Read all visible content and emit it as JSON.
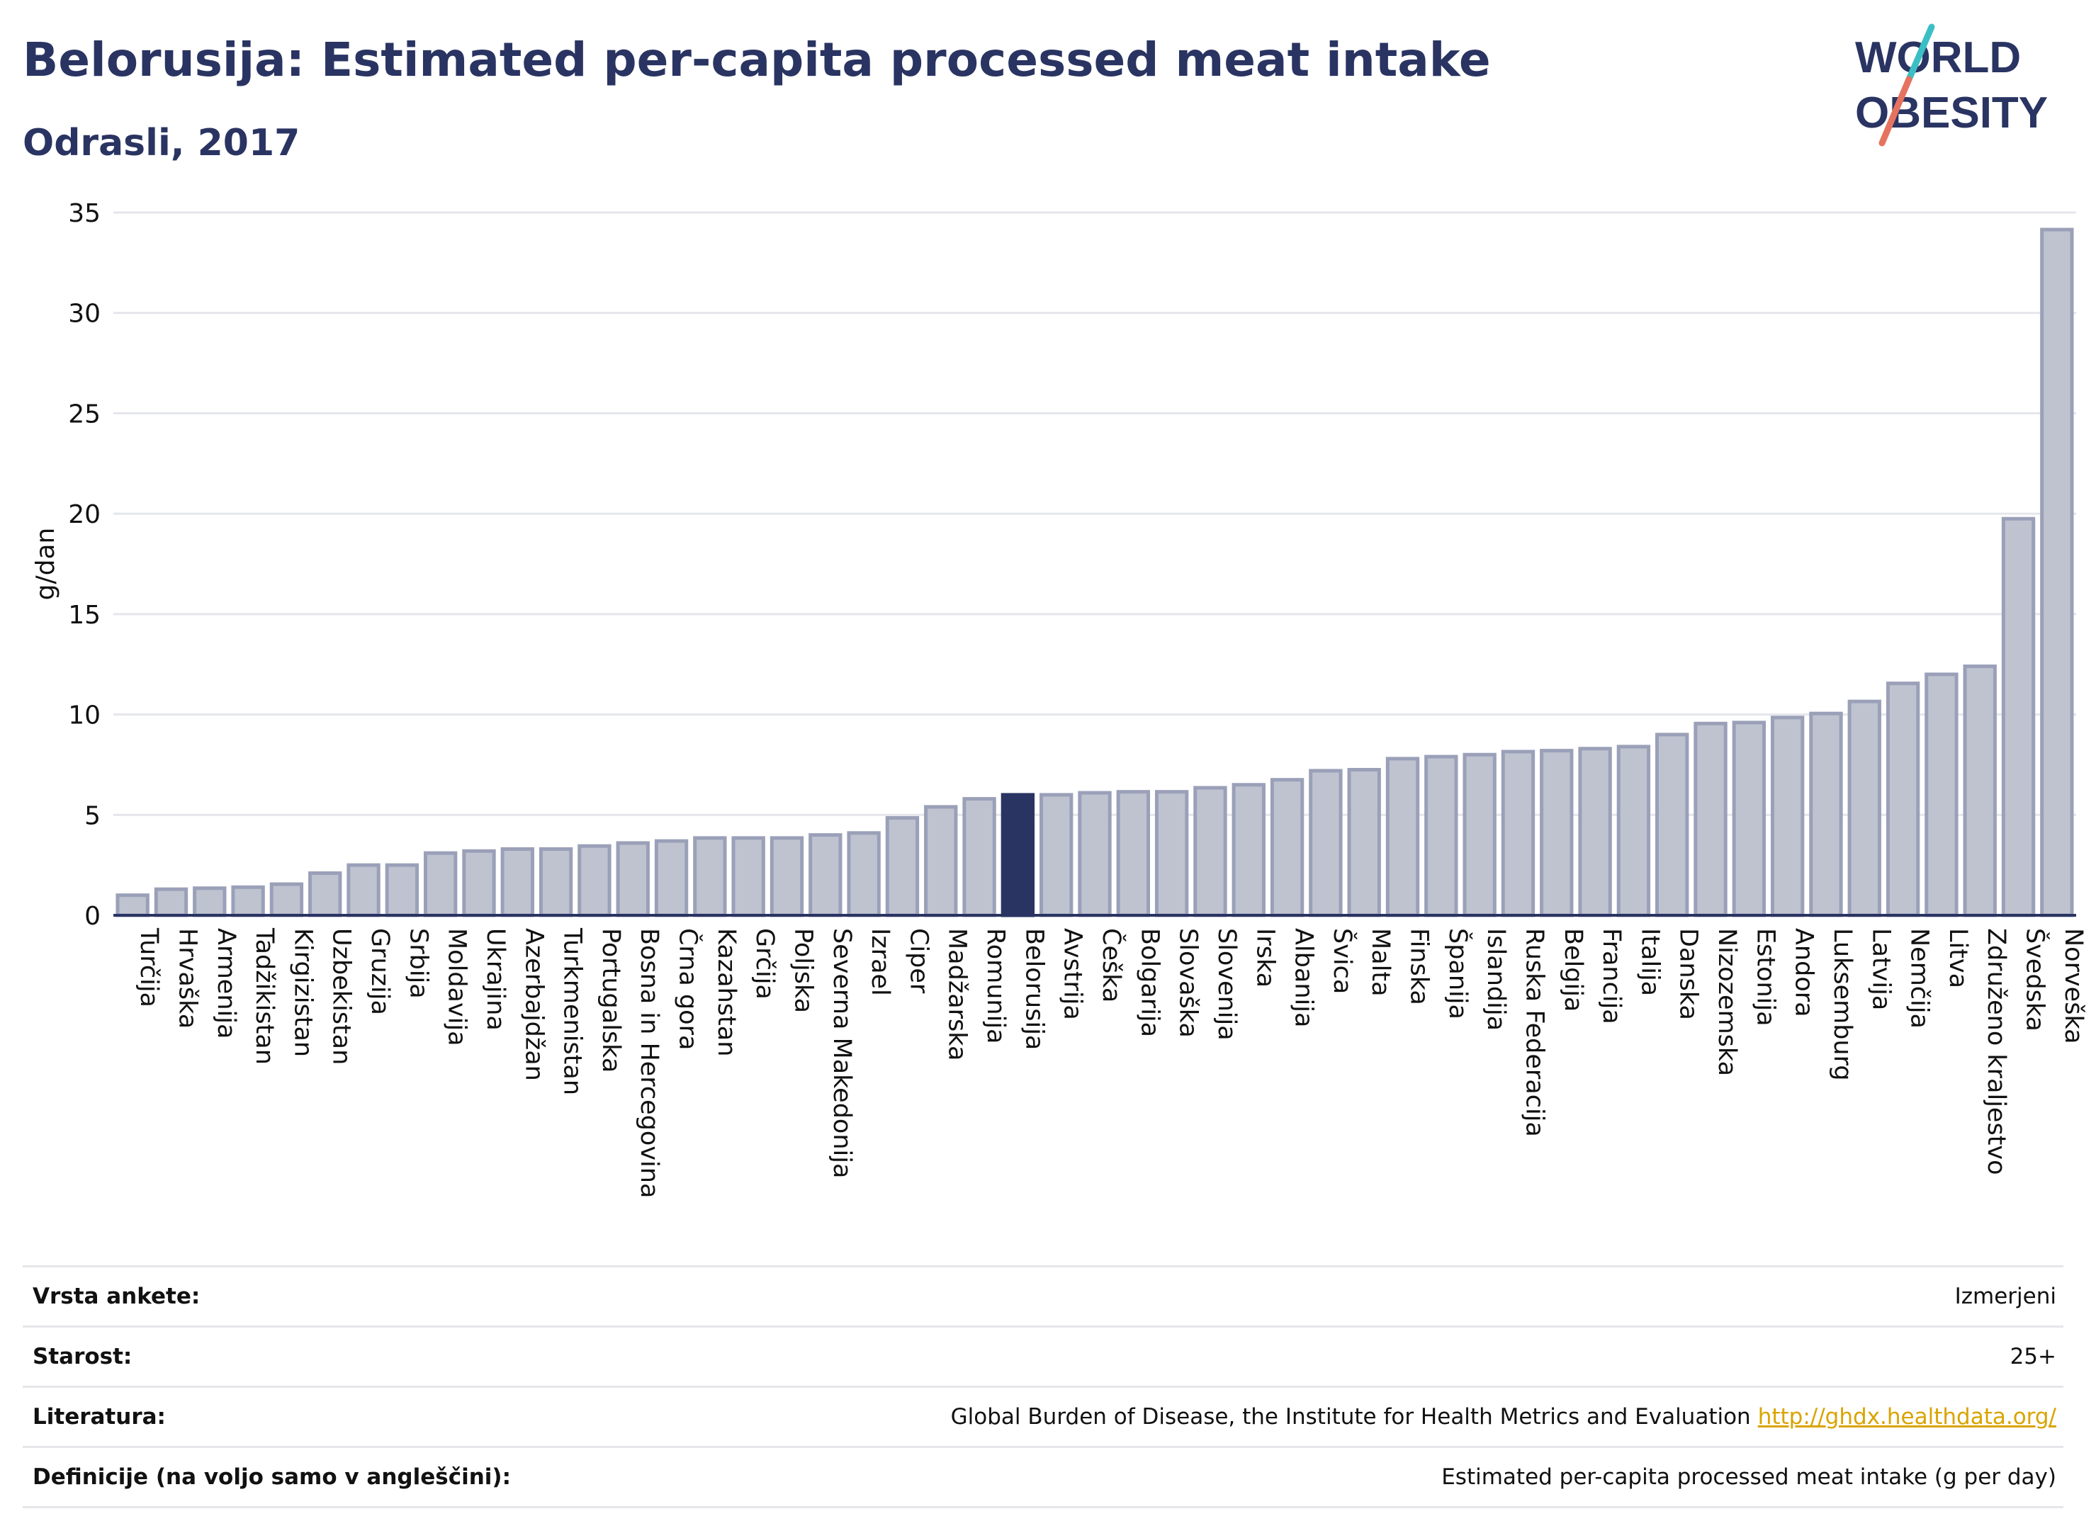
{
  "title": "Belorusija: Estimated per-capita processed meat intake",
  "subtitle": "Odrasli, 2017",
  "logo": {
    "line1": "WORLD",
    "line2": "OBESITY",
    "accent_teal": "#3bbfc4",
    "accent_red": "#e5735f",
    "text_color": "#2a3462"
  },
  "colors": {
    "bar_fill": "#bfc3d0",
    "bar_stroke": "#9aa0b8",
    "highlight_fill": "#2a3462",
    "grid": "#e4e6ec",
    "axis": "#2a3462"
  },
  "chart_data": {
    "type": "bar",
    "ylabel": "g/dan",
    "ylim": [
      0,
      35
    ],
    "yticks": [
      0,
      5,
      10,
      15,
      20,
      25,
      30,
      35
    ],
    "grid": true,
    "highlight": "Belorusija",
    "categories": [
      "Turčija",
      "Hrvaška",
      "Armenija",
      "Tadžikistan",
      "Kirgizistan",
      "Uzbekistan",
      "Gruzija",
      "Srbija",
      "Moldavija",
      "Ukrajina",
      "Azerbajdžan",
      "Turkmenistan",
      "Portugalska",
      "Bosna in Hercegovina",
      "Črna gora",
      "Kazahstan",
      "Grčija",
      "Poljska",
      "Severna Makedonija",
      "Izrael",
      "Ciper",
      "Madžarska",
      "Romunija",
      "Belorusija",
      "Avstrija",
      "Češka",
      "Bolgarija",
      "Slovaška",
      "Slovenija",
      "Irska",
      "Albanija",
      "Švica",
      "Malta",
      "Finska",
      "Španija",
      "Islandija",
      "Ruska Federacija",
      "Belgija",
      "Francija",
      "Italija",
      "Danska",
      "Nizozemska",
      "Estonija",
      "Andora",
      "Luksemburg",
      "Latvija",
      "Nemčija",
      "Litva",
      "Združeno kraljestvo",
      "Švedska",
      "Norveška"
    ],
    "values": [
      1.0,
      1.3,
      1.35,
      1.4,
      1.55,
      2.1,
      2.5,
      2.5,
      3.1,
      3.2,
      3.3,
      3.3,
      3.45,
      3.6,
      3.7,
      3.85,
      3.85,
      3.85,
      4.0,
      4.1,
      4.85,
      5.4,
      5.8,
      6.0,
      6.0,
      6.1,
      6.15,
      6.15,
      6.35,
      6.5,
      6.75,
      7.2,
      7.25,
      7.8,
      7.9,
      8.0,
      8.15,
      8.2,
      8.3,
      8.4,
      9.0,
      9.55,
      9.6,
      9.85,
      10.05,
      10.65,
      11.55,
      12.0,
      12.4,
      19.75,
      34.15
    ]
  },
  "info": [
    {
      "label": "Vrsta ankete:",
      "value": "Izmerjeni"
    },
    {
      "label": "Starost:",
      "value": "25+"
    },
    {
      "label": "Literatura:",
      "value": "Global Burden of Disease, the Institute for Health Metrics and Evaluation",
      "link": "http://ghdx.healthdata.org/"
    },
    {
      "label": "Definicije (na voljo samo v angleščini):",
      "value": "Estimated per-capita processed meat intake (g per day)"
    }
  ]
}
